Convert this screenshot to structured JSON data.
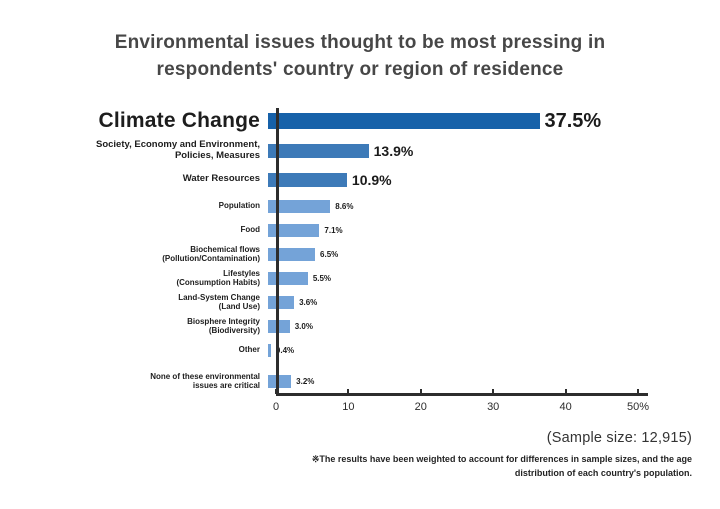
{
  "title": {
    "line1": "Environmental issues thought to be most pressing in",
    "line2": "respondents' country or region of residence"
  },
  "chart_data": {
    "type": "bar",
    "orientation": "horizontal",
    "title": "Environmental issues thought to be most pressing in respondents' country or region of residence",
    "categories": [
      "Climate Change",
      "Society, Economy and Environment, Policies, Measures",
      "Water Resources",
      "Population",
      "Food",
      "Biochemical flows (Pollution/Contamination)",
      "Lifestyles (Consumption Habits)",
      "Land-System Change (Land Use)",
      "Biosphere Integrity (Biodiversity)",
      "Other",
      "None of these environmental issues are critical"
    ],
    "values": [
      37.5,
      13.9,
      10.9,
      8.6,
      7.1,
      6.5,
      5.5,
      3.6,
      3.0,
      0.4,
      3.2
    ],
    "value_labels": [
      "37.5%",
      "13.9%",
      "10.9%",
      "8.6%",
      "7.1%",
      "6.5%",
      "5.5%",
      "3.6%",
      "3.0%",
      "0.4%",
      "3.2%"
    ],
    "xlabel": "",
    "ylabel": "",
    "xlim": [
      0,
      50
    ],
    "x_tick_labels": [
      "0",
      "10",
      "20",
      "30",
      "40",
      "50%"
    ],
    "grid": false,
    "legend": "none"
  },
  "rows": [
    {
      "label_lines": [
        "Climate Change"
      ],
      "value": 37.5,
      "display": "37.5%",
      "tier": "primary",
      "color": "#1661a9",
      "gap_before": false
    },
    {
      "label_lines": [
        "Society, Economy and Environment,",
        "Policies, Measures"
      ],
      "value": 13.9,
      "display": "13.9%",
      "tier": "secondary",
      "color": "#3d7ab8",
      "gap_before": false
    },
    {
      "label_lines": [
        "Water Resources"
      ],
      "value": 10.9,
      "display": "10.9%",
      "tier": "secondary",
      "color": "#3d7ab8",
      "gap_before": false
    },
    {
      "label_lines": [
        "Population"
      ],
      "value": 8.6,
      "display": "8.6%",
      "tier": "minor",
      "color": "#74a3d8",
      "gap_before": false
    },
    {
      "label_lines": [
        "Food"
      ],
      "value": 7.1,
      "display": "7.1%",
      "tier": "minor",
      "color": "#74a3d8",
      "gap_before": false
    },
    {
      "label_lines": [
        "Biochemical flows",
        "(Pollution/Contamination)"
      ],
      "value": 6.5,
      "display": "6.5%",
      "tier": "minor",
      "color": "#74a3d8",
      "gap_before": false
    },
    {
      "label_lines": [
        "Lifestyles",
        "(Consumption Habits)"
      ],
      "value": 5.5,
      "display": "5.5%",
      "tier": "minor",
      "color": "#74a3d8",
      "gap_before": false
    },
    {
      "label_lines": [
        "Land-System Change",
        "(Land Use)"
      ],
      "value": 3.6,
      "display": "3.6%",
      "tier": "minor",
      "color": "#74a3d8",
      "gap_before": false
    },
    {
      "label_lines": [
        "Biosphere Integrity",
        "(Biodiversity)"
      ],
      "value": 3.0,
      "display": "3.0%",
      "tier": "minor",
      "color": "#74a3d8",
      "gap_before": false
    },
    {
      "label_lines": [
        "Other"
      ],
      "value": 0.4,
      "display": "0.4%",
      "tier": "minor",
      "color": "#74a3d8",
      "gap_before": false
    },
    {
      "label_lines": [
        "None of these environmental",
        "issues are critical"
      ],
      "value": 3.2,
      "display": "3.2%",
      "tier": "minor",
      "color": "#74a3d8",
      "gap_before": true
    }
  ],
  "axis": {
    "max": 50,
    "ticks": [
      "0",
      "10",
      "20",
      "30",
      "40",
      "50%"
    ]
  },
  "sample_size": "(Sample size: 12,915)",
  "footnote": {
    "line1": "※The results have been weighted to account for differences in sample sizes, and the age",
    "line2": "distribution of each country's population."
  },
  "colors": {
    "bar_primary": "#1661a9",
    "bar_secondary": "#3d7ab8",
    "bar_minor": "#74a3d8",
    "axis": "#2d2d2d",
    "title_text": "#474747"
  }
}
